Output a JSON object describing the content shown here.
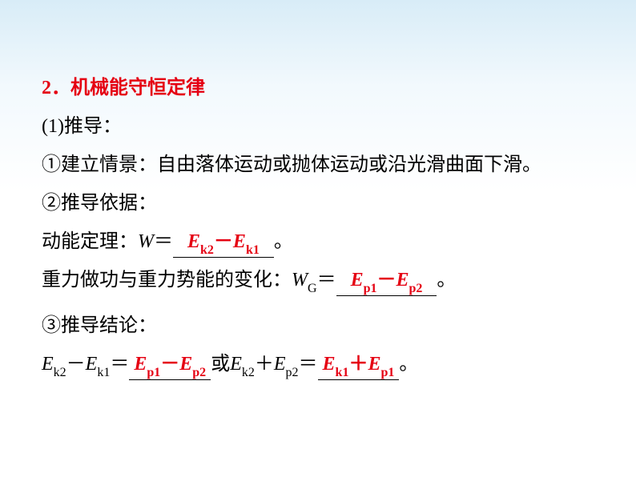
{
  "section": {
    "number": "2",
    "title": "机械能守恒定律"
  },
  "item1": {
    "label": "(1)推导：",
    "p1": "①建立情景：自由落体运动或抛体体运动或沿光滑曲面下滑。",
    "p2": "②推导依据：",
    "ktLabel": "动能定理：",
    "eqW": "W",
    "eqEquals": "＝",
    "answerW_pre": "E",
    "answerW_sub1": "k2",
    "answerW_minus": "－",
    "answerW_pre2": "E",
    "answerW_sub2": "k1",
    "period": "。",
    "gravLabel": "重力做功与重力势能的变化：",
    "eqWG": "W",
    "eqWG_sub": "G",
    "answerWG_pre": "E",
    "answerWG_sub1": "p1",
    "answerWG_minus": "－",
    "answerWG_pre2": "E",
    "answerWG_sub2": "p2",
    "p3": "③推导结论：",
    "concl_E": "E",
    "concl_sub_k2": "k2",
    "concl_sub_k1": "k1",
    "concl_sub_p2": "p2",
    "concl_minus": "－",
    "concl_plus": "＋",
    "concl_eq": "＝",
    "concl_or": "或",
    "ans3a_E": "E",
    "ans3a_sub1": "p1",
    "ans3a_minus": "－",
    "ans3a_E2": "E",
    "ans3a_sub2": "p2",
    "ans3b_E": "E",
    "ans3b_sub1": "k1",
    "ans3b_plus": "＋",
    "ans3b_E2": "E",
    "ans3b_sub2": "p1"
  },
  "colors": {
    "red": "#e50012",
    "text": "#000000",
    "bg_top": "#d8ecf7",
    "bg_bottom": "#ffffff"
  },
  "fonts": {
    "body_size": 24,
    "sub_size": 16,
    "line_height": 48,
    "family": "SimSun / STSong serif"
  }
}
